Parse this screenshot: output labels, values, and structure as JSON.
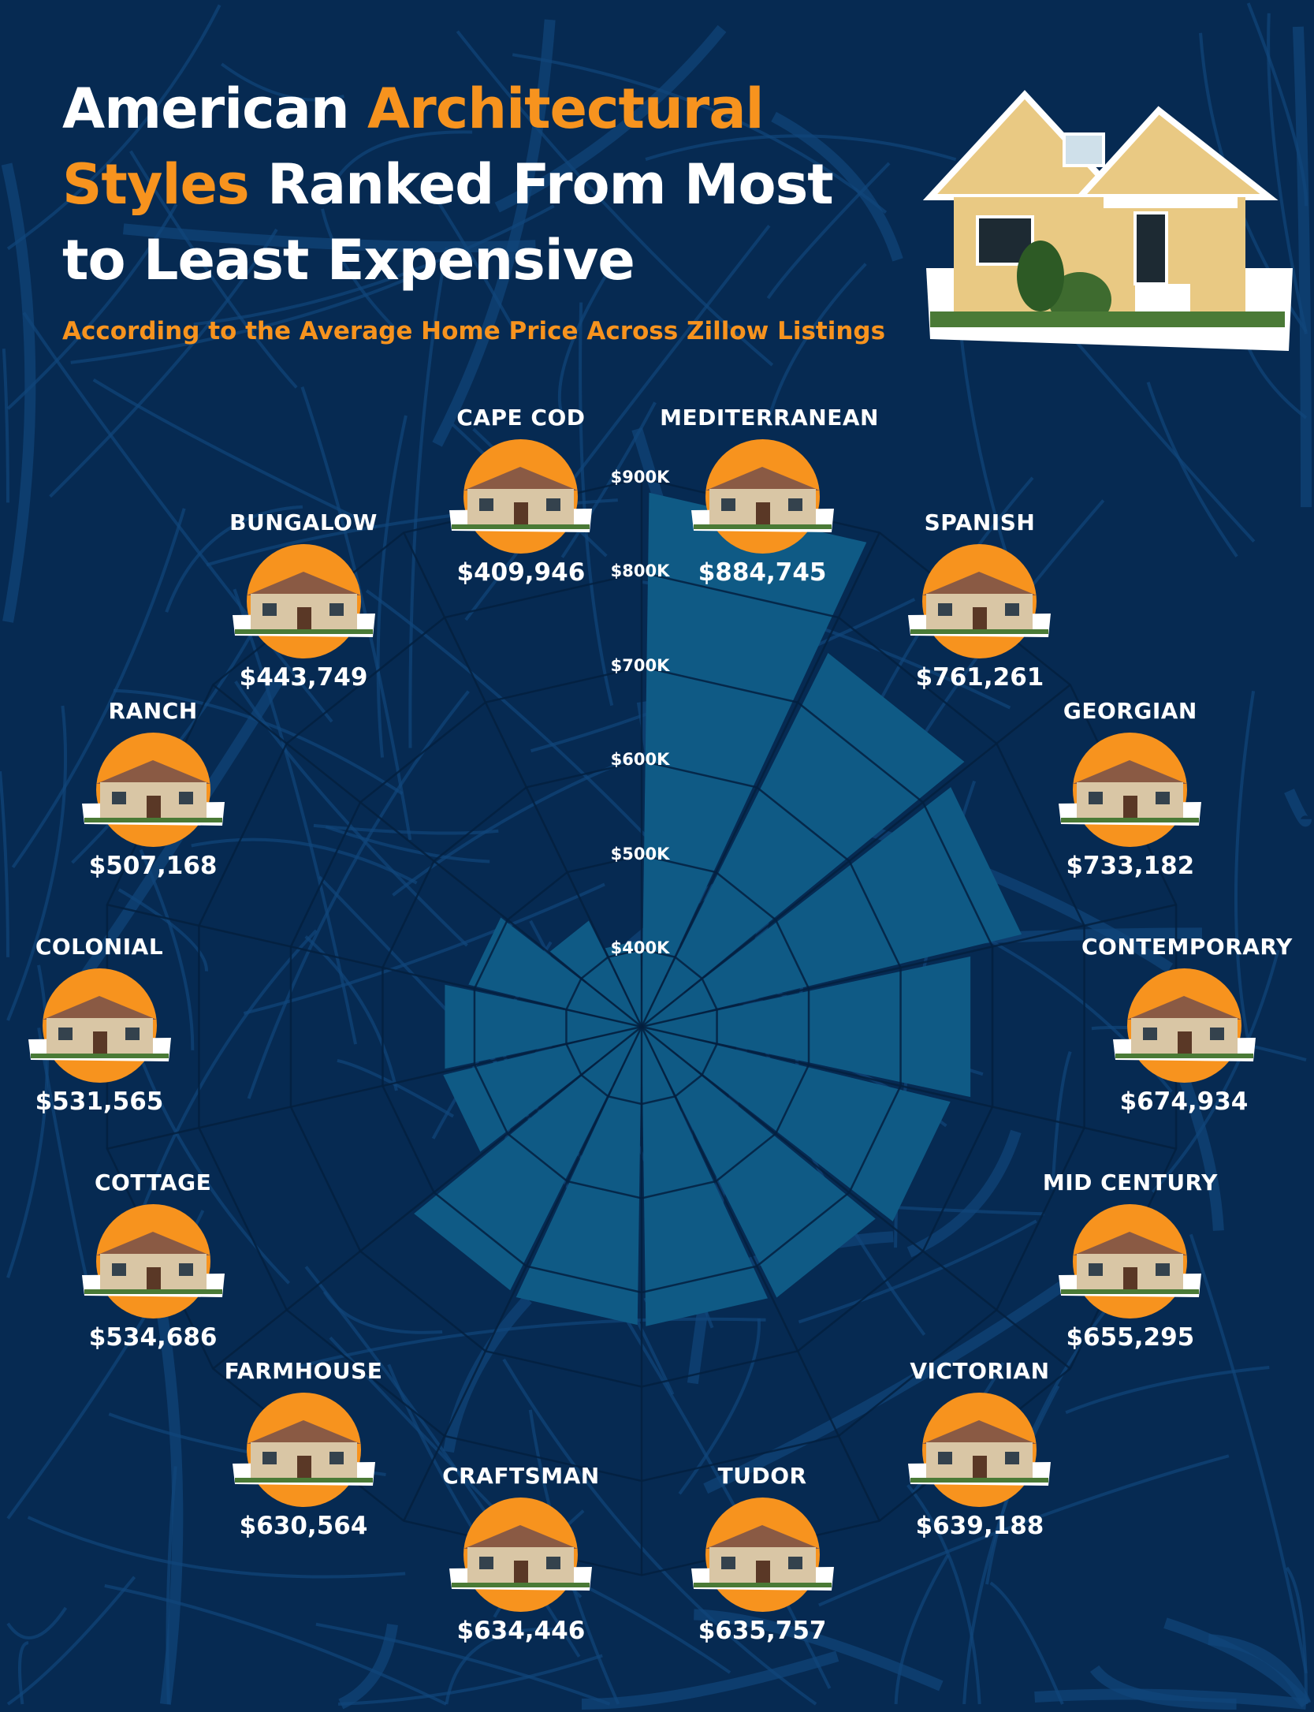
{
  "header": {
    "title_part1": "American ",
    "title_highlight1": "Architectural",
    "title_highlight2": "Styles",
    "title_part2": " Ranked From Most to Least Expensive",
    "subtitle": "According to the Average Home Price Across Zillow Listings"
  },
  "colors": {
    "background": "#062a52",
    "bar": "#0f5a85",
    "accent": "#f7931e",
    "text": "#ffffff"
  },
  "chart_data": {
    "type": "bar",
    "layout": "radial",
    "title": "American Architectural Styles Ranked From Most to Least Expensive",
    "subtitle": "According to the Average Home Price Across Zillow Listings",
    "categories": [
      "MEDITERRANEAN",
      "SPANISH",
      "GEORGIAN",
      "CONTEMPORARY",
      "MID CENTURY",
      "VICTORIAN",
      "TUDOR",
      "CRAFTSMAN",
      "FARMHOUSE",
      "COTTAGE",
      "COLONIAL",
      "RANCH",
      "BUNGALOW",
      "CAPE COD"
    ],
    "values": [
      884745,
      761261,
      733182,
      674934,
      655295,
      639188,
      635757,
      634446,
      630564,
      534686,
      531565,
      507168,
      443749,
      409946
    ],
    "value_labels": [
      "$884,745",
      "$761,261",
      "$733,182",
      "$674,934",
      "$655,295",
      "$639,188",
      "$635,757",
      "$634,446",
      "$630,564",
      "$534,686",
      "$531,565",
      "$507,168",
      "$443,749",
      "$409,946"
    ],
    "radial_ticks": [
      400000,
      500000,
      600000,
      700000,
      800000,
      900000
    ],
    "radial_tick_labels": [
      "$400K",
      "$500K",
      "$600K",
      "$700K",
      "$800K",
      "$900K"
    ],
    "grid": true,
    "legend": "none"
  }
}
